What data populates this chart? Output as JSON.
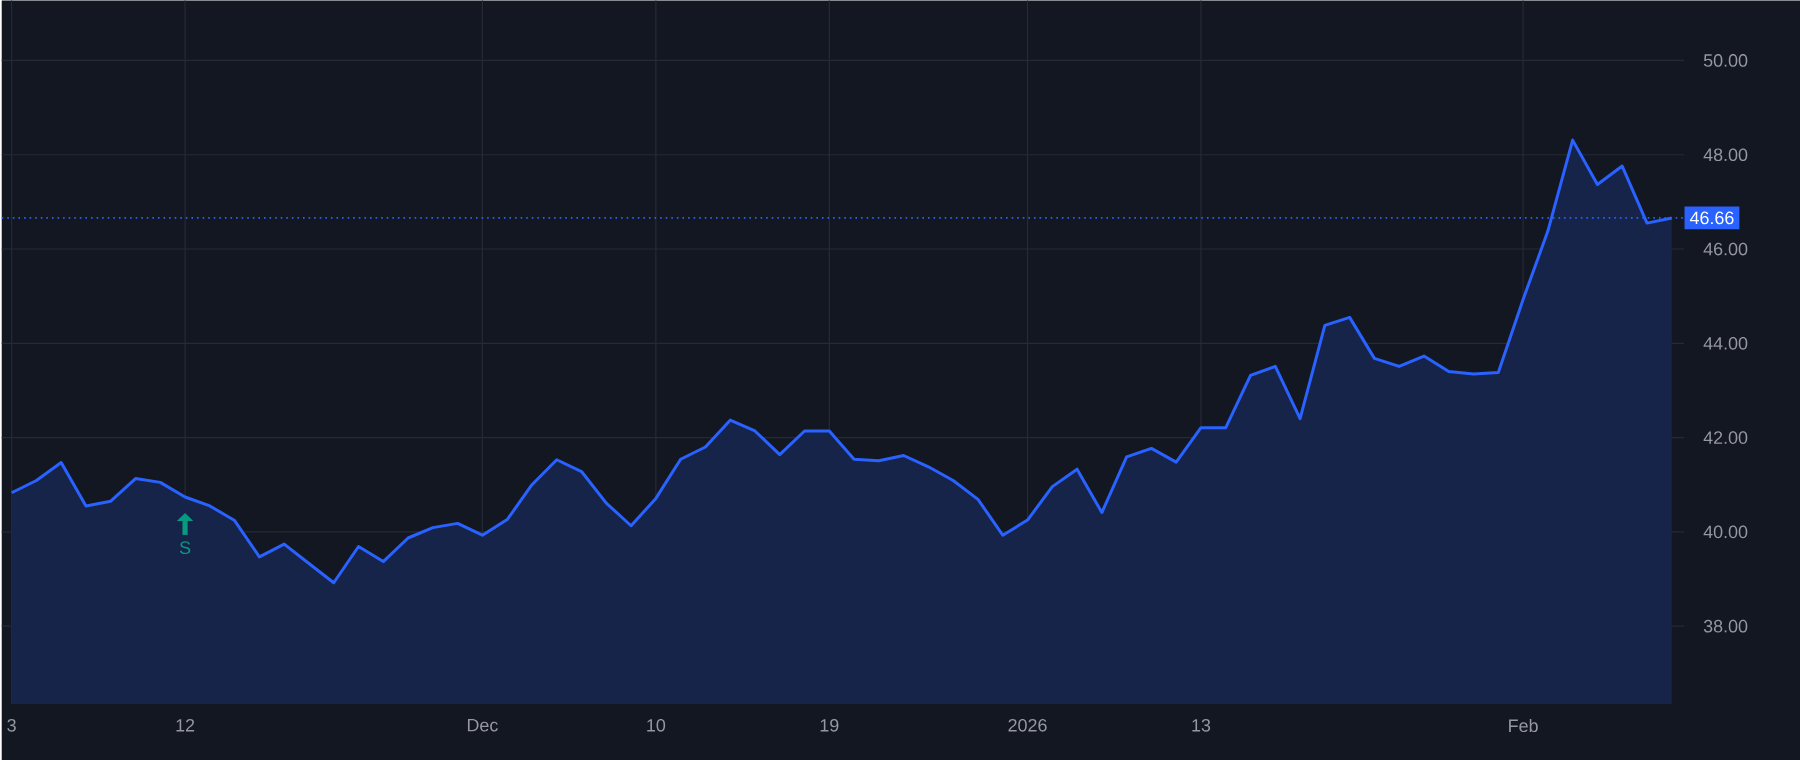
{
  "chart_data": {
    "type": "area",
    "categories": [
      "3",
      null,
      null,
      null,
      null,
      null,
      null,
      "12",
      null,
      null,
      null,
      null,
      null,
      null,
      null,
      null,
      null,
      null,
      null,
      "Dec",
      null,
      null,
      null,
      null,
      null,
      null,
      "10",
      null,
      null,
      null,
      null,
      null,
      null,
      "19",
      null,
      null,
      null,
      null,
      null,
      null,
      null,
      "2026",
      null,
      null,
      null,
      null,
      null,
      null,
      "13",
      null,
      null,
      null,
      null,
      null,
      null,
      null,
      null,
      null,
      null,
      null,
      null,
      "Feb",
      null,
      null,
      null,
      null,
      null,
      null
    ],
    "series": [
      {
        "color": "#2962ff",
        "values": [
          40.83,
          41.09,
          41.47,
          40.55,
          40.65,
          41.13,
          41.05,
          40.74,
          40.55,
          40.24,
          39.47,
          39.74,
          39.33,
          38.92,
          39.69,
          39.37,
          39.87,
          40.09,
          40.18,
          39.93,
          40.26,
          41.0,
          41.53,
          41.28,
          40.61,
          40.13,
          40.71,
          41.54,
          41.8,
          42.37,
          42.14,
          41.64,
          42.14,
          42.14,
          41.54,
          41.51,
          41.62,
          41.38,
          41.09,
          40.69,
          39.93,
          40.25,
          40.96,
          41.33,
          40.41,
          41.59,
          41.77,
          41.48,
          42.21,
          42.21,
          43.32,
          43.51,
          42.4,
          44.38,
          44.55,
          43.68,
          43.51,
          43.73,
          43.4,
          43.35,
          43.38,
          44.93,
          46.38,
          48.31,
          47.37,
          47.76,
          46.55,
          46.66
        ]
      }
    ],
    "ylim": [
      36.35,
      51.27
    ],
    "yticks": [
      {
        "value": 38,
        "label": "38.00"
      },
      {
        "value": 40,
        "label": "40.00"
      },
      {
        "value": 42,
        "label": "42.00"
      },
      {
        "value": 44,
        "label": "44.00"
      },
      {
        "value": 46,
        "label": "46.00"
      },
      {
        "value": 48,
        "label": "48.00"
      },
      {
        "value": 50,
        "label": "50.00"
      }
    ],
    "grid": true,
    "ref_lines": [
      {
        "axis": "y",
        "value": 46.66,
        "label": "46.66",
        "color": "#2962ff",
        "line_style": "dotted"
      }
    ],
    "annotations": [
      {
        "text": "S",
        "x": "12",
        "y": 40.74
      }
    ]
  }
}
